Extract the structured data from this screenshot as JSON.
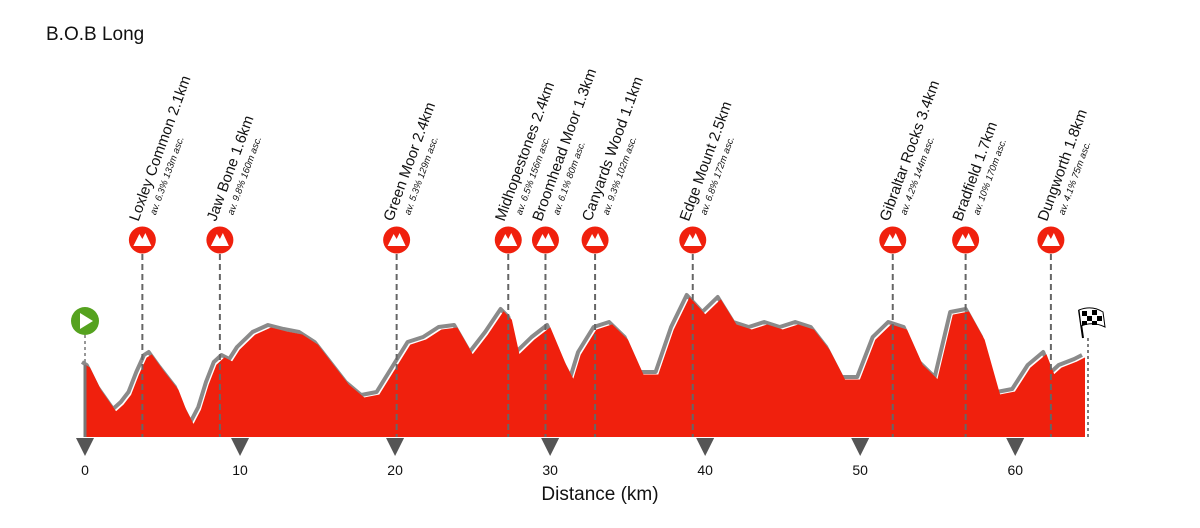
{
  "chart_data": {
    "type": "elevation-profile",
    "title": "B.O.B Long",
    "x_label": "Distance (km)",
    "x": [
      0,
      0.3,
      1,
      2,
      2.5,
      3,
      3.5,
      4,
      4.3,
      5,
      6,
      6.5,
      7,
      7.5,
      8,
      8.5,
      9,
      9.5,
      10,
      11,
      12,
      13,
      14,
      15,
      16,
      17,
      18,
      19,
      20,
      21,
      22,
      23,
      24,
      25,
      26,
      27,
      27.5,
      28,
      29,
      30,
      31,
      31.5,
      32,
      33,
      34,
      35,
      36,
      37,
      38,
      39,
      40,
      41,
      42,
      43,
      44,
      45,
      46,
      47,
      48,
      49,
      50,
      51,
      52,
      53,
      54,
      55,
      56,
      57,
      58,
      59,
      60,
      61,
      62,
      62.5,
      63,
      64,
      64.5
    ],
    "values": [
      244,
      238,
      194,
      150,
      164,
      184,
      224,
      258,
      264,
      234,
      194,
      154,
      124,
      154,
      204,
      244,
      258,
      250,
      274,
      304,
      318,
      310,
      304,
      284,
      244,
      204,
      178,
      184,
      234,
      284,
      294,
      314,
      318,
      264,
      304,
      350,
      334,
      264,
      294,
      318,
      244,
      214,
      264,
      314,
      324,
      294,
      224,
      224,
      314,
      378,
      344,
      374,
      324,
      314,
      324,
      314,
      324,
      314,
      274,
      214,
      214,
      294,
      324,
      314,
      244,
      214,
      344,
      350,
      294,
      184,
      190,
      238,
      264,
      224,
      238,
      250,
      258
    ],
    "color": "#f0200d",
    "xlim": [
      0,
      64.5
    ],
    "ylim": [
      100,
      500
    ],
    "xticks": [
      0,
      10,
      20,
      30,
      40,
      50,
      60
    ],
    "climbs": [
      {
        "name": "Loxley Common 2.1km",
        "detail": "av. 6.3% 133m asc.",
        "x": 3.7
      },
      {
        "name": "Jaw Bone 1.6km",
        "detail": "av. 9.8% 160m asc.",
        "x": 8.7
      },
      {
        "name": "Green Moor 2.4km",
        "detail": "av. 5.3% 129m asc.",
        "x": 20.1
      },
      {
        "name": "Midhopestones 2.4km",
        "detail": "av. 6.5% 156m asc.",
        "x": 27.3
      },
      {
        "name": "Broomhead Moor 1.3km",
        "detail": "av. 6.1% 80m asc.",
        "x": 29.7
      },
      {
        "name": "Canyards Wood 1.1km",
        "detail": "av. 9.3% 102m asc.",
        "x": 32.9
      },
      {
        "name": "Edge Mount 2.5km",
        "detail": "av. 6.8% 172m asc.",
        "x": 39.2
      },
      {
        "name": "Gibraltar Rocks 3.4km",
        "detail": "av. 4.2% 144m asc.",
        "x": 52.1
      },
      {
        "name": "Bradfield 1.7km",
        "detail": "av. 10% 170m asc.",
        "x": 56.8
      },
      {
        "name": "Dungworth 1.8km",
        "detail": "av. 4.1% 75m asc.",
        "x": 62.3
      }
    ]
  }
}
